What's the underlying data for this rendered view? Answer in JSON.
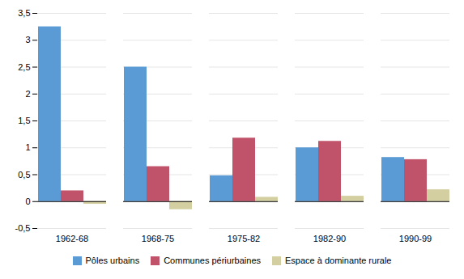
{
  "chart_data": {
    "type": "bar",
    "categories": [
      "1962-68",
      "1968-75",
      "1975-82",
      "1982-90",
      "1990-99"
    ],
    "series": [
      {
        "name": "Pôles urbains",
        "color": "#5B9BD5",
        "values": [
          3.25,
          2.5,
          0.48,
          1.0,
          0.82
        ]
      },
      {
        "name": "Communes périurbaines",
        "color": "#C0536A",
        "values": [
          0.2,
          0.65,
          1.18,
          1.12,
          0.78
        ]
      },
      {
        "name": "Espace à dominante rurale",
        "color": "#D4CFA0",
        "values": [
          -0.05,
          -0.15,
          0.08,
          0.1,
          0.22
        ]
      }
    ],
    "ylim": [
      -0.5,
      3.5
    ],
    "yticks": [
      {
        "value": -0.5,
        "label": "-0,5"
      },
      0,
      {
        "value": 0.5,
        "label": "0,5"
      },
      1,
      {
        "value": 1.5,
        "label": "1,5"
      },
      2,
      {
        "value": 2.5,
        "label": "2,5"
      },
      3,
      {
        "value": 3.5,
        "label": "3,5"
      }
    ],
    "grid": true,
    "legend": "bottom"
  }
}
